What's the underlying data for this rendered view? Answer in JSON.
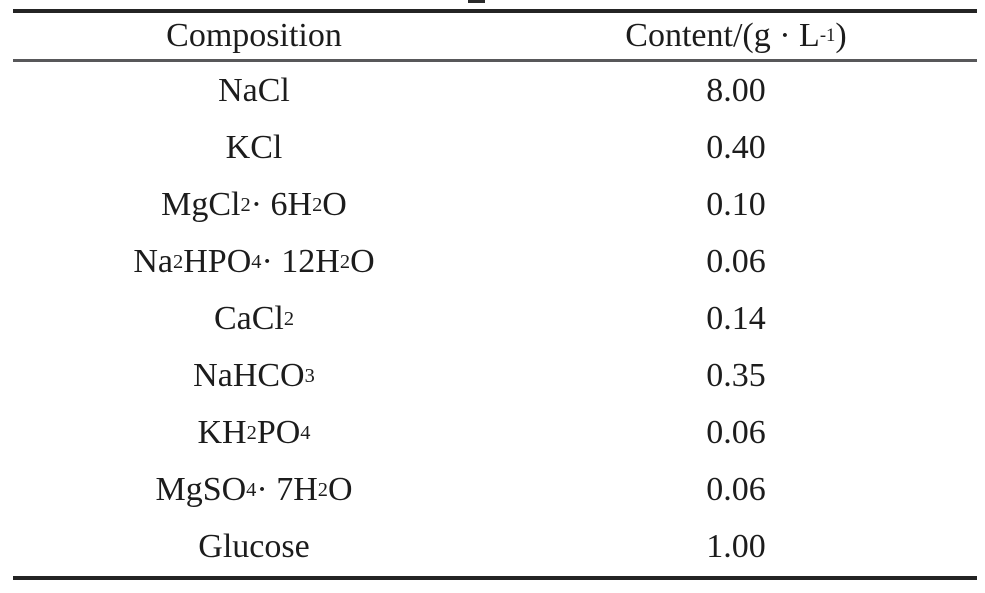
{
  "colors": {
    "background": "#ffffff",
    "text": "#1c1c1c",
    "rule_dark": "#242424",
    "rule_gray": "#58585a"
  },
  "table": {
    "header": {
      "composition": "Composition",
      "content": [
        {
          "t": "Content/(g · L"
        },
        {
          "sup": "-1"
        },
        {
          "t": ")"
        }
      ]
    },
    "rows": [
      {
        "composition": [
          {
            "t": "NaCl"
          }
        ],
        "content": "8.00"
      },
      {
        "composition": [
          {
            "t": "KCl"
          }
        ],
        "content": "0.40"
      },
      {
        "composition": [
          {
            "t": "MgCl"
          },
          {
            "sub": "2"
          },
          {
            "t": " · 6H"
          },
          {
            "sub": "2"
          },
          {
            "t": "O"
          }
        ],
        "content": "0.10"
      },
      {
        "composition": [
          {
            "t": "Na"
          },
          {
            "sub": "2"
          },
          {
            "t": "HPO"
          },
          {
            "sub": "4"
          },
          {
            "t": " · 12H"
          },
          {
            "sub": "2"
          },
          {
            "t": "O"
          }
        ],
        "content": "0.06"
      },
      {
        "composition": [
          {
            "t": "CaCl"
          },
          {
            "sub": "2"
          }
        ],
        "content": "0.14"
      },
      {
        "composition": [
          {
            "t": "NaHCO"
          },
          {
            "sub": "3"
          }
        ],
        "content": "0.35"
      },
      {
        "composition": [
          {
            "t": "KH"
          },
          {
            "sub": "2"
          },
          {
            "t": "PO"
          },
          {
            "sub": "4"
          }
        ],
        "content": "0.06"
      },
      {
        "composition": [
          {
            "t": "MgSO"
          },
          {
            "sub": "4"
          },
          {
            "t": " · 7H"
          },
          {
            "sub": "2"
          },
          {
            "t": "O"
          }
        ],
        "content": "0.06"
      },
      {
        "composition": [
          {
            "t": "Glucose"
          }
        ],
        "content": "1.00"
      }
    ]
  }
}
